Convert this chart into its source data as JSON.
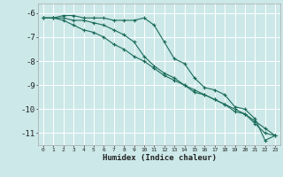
{
  "xlabel": "Humidex (Indice chaleur)",
  "bg_color": "#cce8e8",
  "grid_color": "#ffffff",
  "line_color": "#1a6b5a",
  "xlim": [
    -0.5,
    23.5
  ],
  "ylim": [
    -11.5,
    -5.6
  ],
  "yticks": [
    -6,
    -7,
    -8,
    -9,
    -10,
    -11
  ],
  "xticks": [
    0,
    1,
    2,
    3,
    4,
    5,
    6,
    7,
    8,
    9,
    10,
    11,
    12,
    13,
    14,
    15,
    16,
    17,
    18,
    19,
    20,
    21,
    22,
    23
  ],
  "x": [
    0,
    1,
    2,
    3,
    4,
    5,
    6,
    7,
    8,
    9,
    10,
    11,
    12,
    13,
    14,
    15,
    16,
    17,
    18,
    19,
    20,
    21,
    22,
    23
  ],
  "line1": [
    -6.2,
    -6.2,
    -6.1,
    -6.1,
    -6.2,
    -6.2,
    -6.2,
    -6.3,
    -6.3,
    -6.3,
    -6.2,
    -6.5,
    -7.2,
    -7.9,
    -8.1,
    -8.7,
    -9.1,
    -9.2,
    -9.4,
    -9.9,
    -10.0,
    -10.4,
    -11.3,
    -11.1
  ],
  "line2": [
    -6.2,
    -6.2,
    -6.2,
    -6.3,
    -6.3,
    -6.4,
    -6.5,
    -6.7,
    -6.9,
    -7.2,
    -7.8,
    -8.2,
    -8.5,
    -8.7,
    -9.0,
    -9.3,
    -9.4,
    -9.6,
    -9.8,
    -10.1,
    -10.2,
    -10.6,
    -11.0,
    -11.1
  ],
  "line3": [
    -6.2,
    -6.2,
    -6.3,
    -6.5,
    -6.7,
    -6.8,
    -7.0,
    -7.3,
    -7.5,
    -7.8,
    -8.0,
    -8.3,
    -8.6,
    -8.8,
    -9.0,
    -9.2,
    -9.4,
    -9.6,
    -9.8,
    -10.0,
    -10.2,
    -10.5,
    -10.8,
    -11.1
  ]
}
